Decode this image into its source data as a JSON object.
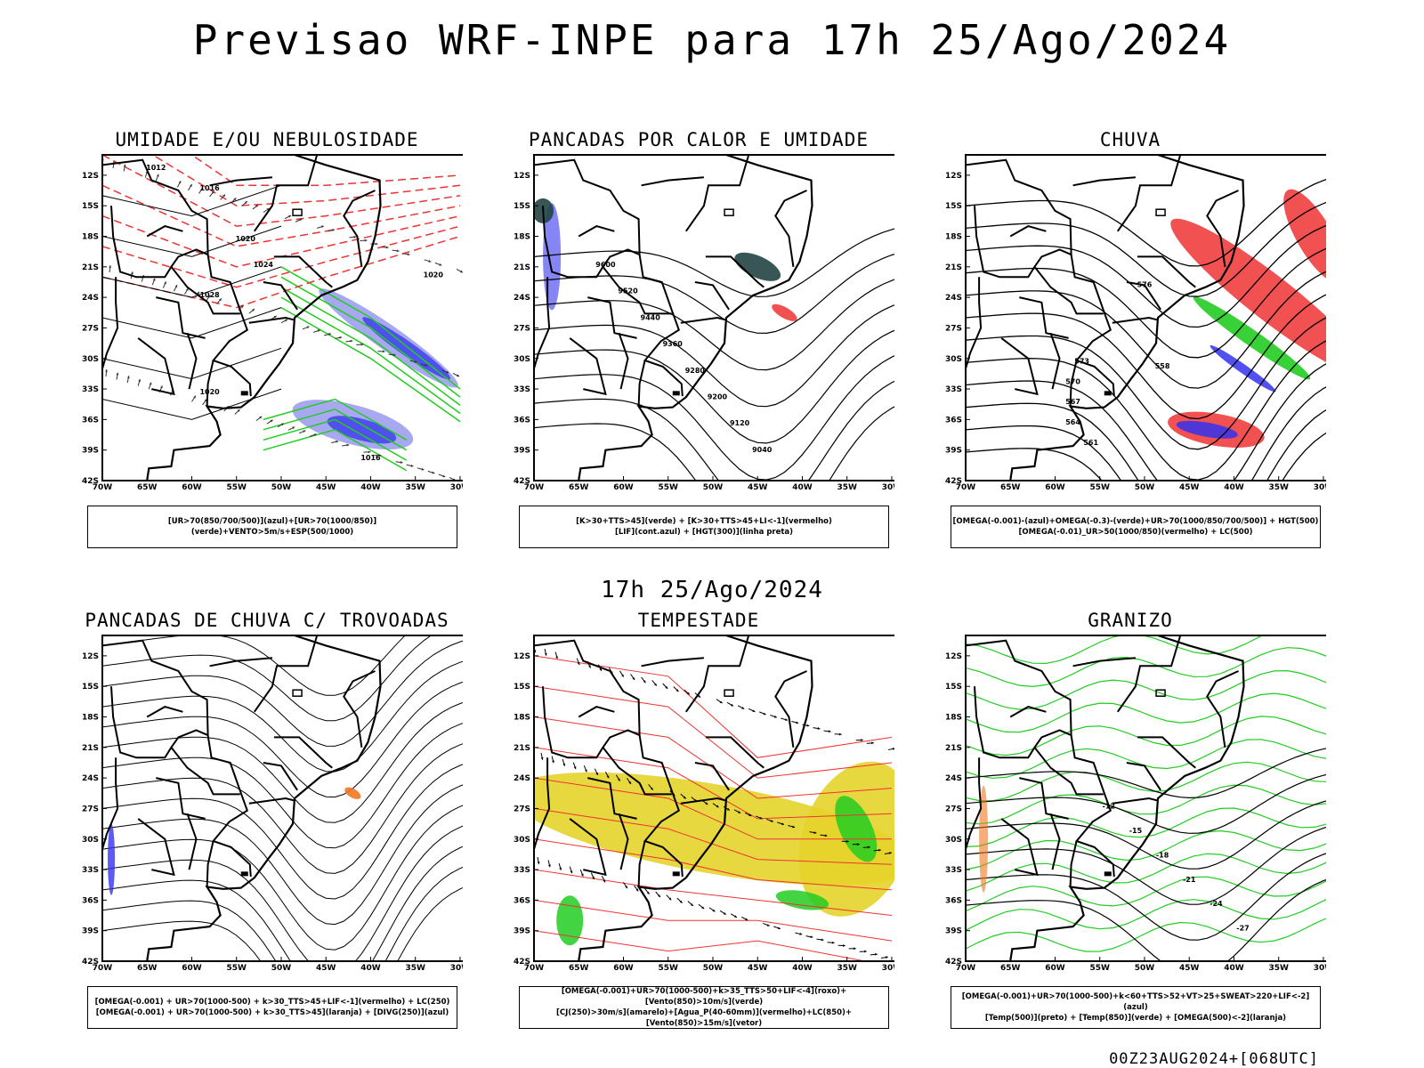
{
  "header": {
    "title": "Previsao WRF-INPE  para 17h 25/Ago/2024"
  },
  "middle_title": "17h 25/Ago/2024",
  "footer": "00Z23AUG2024+[068UTC]",
  "axes": {
    "lat_labels": [
      "12S",
      "15S",
      "18S",
      "21S",
      "24S",
      "27S",
      "30S",
      "33S",
      "36S",
      "39S",
      "42S"
    ],
    "lon_labels": [
      "70W",
      "65W",
      "60W",
      "55W",
      "50W",
      "45W",
      "40W",
      "35W",
      "30W"
    ]
  },
  "colors": {
    "red": "#ee3333",
    "green": "#22cc22",
    "blue": "#3333ee",
    "lightblue": "#9999ee",
    "yellow": "#e6d42a",
    "orange": "#ee7722",
    "teal": "#224444"
  },
  "panels": [
    {
      "title": "UMIDADE E/OU NEBULOSIDADE",
      "legend": [
        "[UR>70(850/700/500)](azul)+[UR>70(1000/850)](verde)+VENTO>5m/s+ESP(500/1000)"
      ]
    },
    {
      "title": "PANCADAS POR CALOR E UMIDADE",
      "legend": [
        "[K>30+TTS>45](verde) + [K>30+TTS>45+LI<-1](vermelho)",
        "[LIF](cont.azul) + [HGT(300)](linha preta)"
      ]
    },
    {
      "title": "CHUVA",
      "legend": [
        "[OMEGA(-0.001)-(azul)+OMEGA(-0.3)-(verde)+UR>70(1000/850/700/500)] + HGT(500)",
        "[OMEGA(-0.01)_UR>50(1000/850)(vermelho) + LC(500)"
      ]
    },
    {
      "title": "PANCADAS DE CHUVA C/ TROVOADAS",
      "legend": [
        "[OMEGA(-0.001) + UR>70(1000-500) + k>30_TTS>45+LIF<-1](vermelho) + LC(250)",
        "[OMEGA(-0.001) + UR>70(1000-500) + k>30_TTS>45](laranja) + [DIVG(250)](azul)"
      ]
    },
    {
      "title": "TEMPESTADE",
      "legend": [
        "[OMEGA(-0.001)+UR>70(1000-500)+k>35_TTS>50+LIF<-4](roxo)+[Vento(850)>10m/s](verde)",
        "[CJ(250)>30m/s](amarelo)+[Agua_P(40-60mm)](vermelho)+LC(850)+[Vento(850)>15m/s](vetor)"
      ]
    },
    {
      "title": "GRANIZO",
      "legend": [
        "[OMEGA(-0.001)+UR>70(1000-500)+k<60+TTS>52+VT>25+SWEAT>220+LIF<-2](azul)",
        "[Temp(500)](preto) + [Temp(850)](verde) + [OMEGA(500)<-2](laranja)"
      ]
    }
  ],
  "contour_labels": {
    "p1": [
      "1012",
      "1016",
      "1020",
      "1024",
      "1028",
      "1020",
      "1016",
      "1020"
    ],
    "p2": [
      "9600",
      "9520",
      "9440",
      "9360",
      "9280",
      "9200",
      "9120",
      "9040"
    ],
    "p3": [
      "573",
      "570",
      "567",
      "564",
      "561",
      "558",
      "576"
    ],
    "p6": [
      "-12",
      "-15",
      "-18",
      "-21",
      "-24",
      "-27"
    ]
  }
}
